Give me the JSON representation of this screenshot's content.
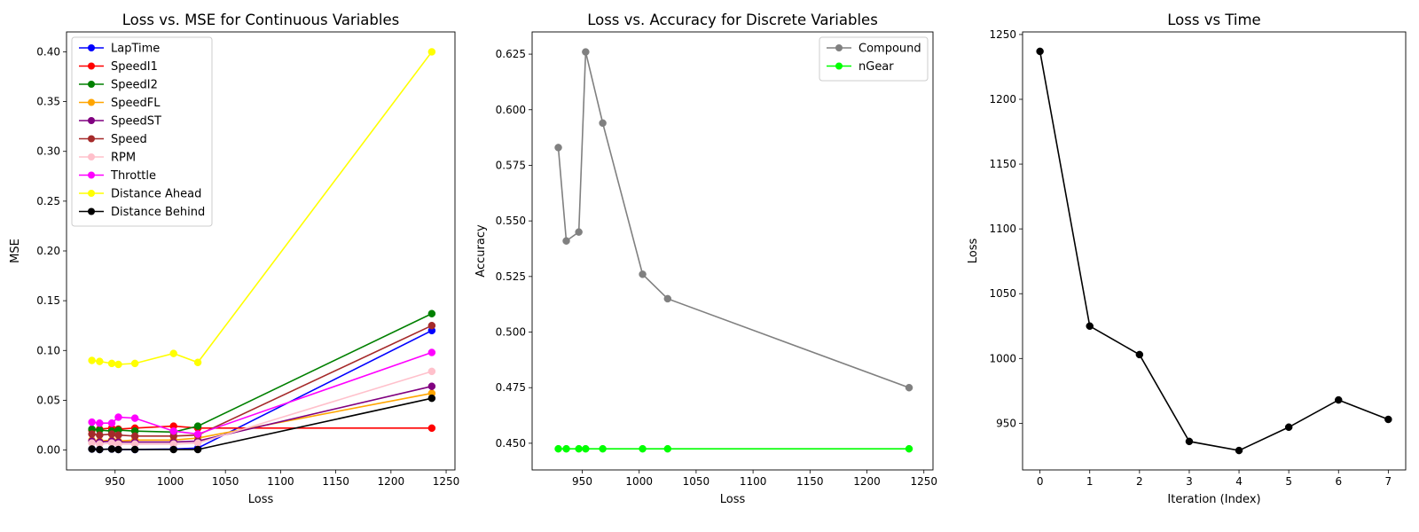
{
  "chart_data": [
    {
      "type": "line",
      "title": "Loss vs. MSE for Continuous Variables",
      "xlabel": "Loss",
      "ylabel": "MSE",
      "xlim": [
        906,
        1258
      ],
      "ylim": [
        -0.02,
        0.42
      ],
      "xticks": [
        "950",
        "1000",
        "1050",
        "1100",
        "1150",
        "1200",
        "1250"
      ],
      "xtick_values": [
        950,
        1000,
        1050,
        1100,
        1150,
        1200,
        1250
      ],
      "yticks": [
        "0.00",
        "0.05",
        "0.10",
        "0.15",
        "0.20",
        "0.25",
        "0.30",
        "0.35",
        "0.40"
      ],
      "ytick_values": [
        0,
        0.05,
        0.1,
        0.15,
        0.2,
        0.25,
        0.3,
        0.35,
        0.4
      ],
      "legend_position": "top-left",
      "grid": false,
      "x": [
        929,
        936,
        947,
        953,
        968,
        1003,
        1025,
        1237
      ],
      "series": [
        {
          "name": "LapTime",
          "color": "#0000ff",
          "values": [
            0.001,
            0.0005,
            0.001,
            0.0005,
            0.0005,
            0.001,
            0.002,
            0.12
          ]
        },
        {
          "name": "SpeedI1",
          "color": "#ff0000",
          "values": [
            0.02,
            0.021,
            0.022,
            0.021,
            0.022,
            0.024,
            0.022,
            0.022
          ]
        },
        {
          "name": "SpeedI2",
          "color": "#008000",
          "values": [
            0.021,
            0.02,
            0.019,
            0.02,
            0.019,
            0.018,
            0.024,
            0.137
          ]
        },
        {
          "name": "SpeedFL",
          "color": "#ffa500",
          "values": [
            0.01,
            0.009,
            0.01,
            0.009,
            0.01,
            0.01,
            0.012,
            0.057
          ]
        },
        {
          "name": "SpeedST",
          "color": "#800080",
          "values": [
            0.009,
            0.008,
            0.009,
            0.008,
            0.008,
            0.008,
            0.009,
            0.064
          ]
        },
        {
          "name": "Speed",
          "color": "#a52a2a",
          "values": [
            0.016,
            0.015,
            0.016,
            0.015,
            0.014,
            0.014,
            0.015,
            0.125
          ]
        },
        {
          "name": "RPM",
          "color": "#ffc0cb",
          "values": [
            0.007,
            0.006,
            0.007,
            0.006,
            0.006,
            0.006,
            0.007,
            0.079
          ]
        },
        {
          "name": "Throttle",
          "color": "#ff00ff",
          "values": [
            0.028,
            0.027,
            0.027,
            0.033,
            0.032,
            0.019,
            0.016,
            0.098
          ]
        },
        {
          "name": "Distance Ahead",
          "color": "#ffff00",
          "values": [
            0.09,
            0.089,
            0.087,
            0.086,
            0.087,
            0.097,
            0.088,
            0.4
          ]
        },
        {
          "name": "Distance Behind",
          "color": "#000000",
          "values": [
            0.001,
            0.0005,
            0.001,
            0.0005,
            0.0005,
            0.0005,
            0.0005,
            0.052
          ]
        }
      ]
    },
    {
      "type": "line",
      "title": "Loss vs. Accuracy for Discrete Variables",
      "xlabel": "Loss",
      "ylabel": "Accuracy",
      "xlim": [
        906,
        1258
      ],
      "ylim": [
        0.438,
        0.635
      ],
      "xticks": [
        "950",
        "1000",
        "1050",
        "1100",
        "1150",
        "1200",
        "1250"
      ],
      "xtick_values": [
        950,
        1000,
        1050,
        1100,
        1150,
        1200,
        1250
      ],
      "yticks": [
        "0.450",
        "0.475",
        "0.500",
        "0.525",
        "0.550",
        "0.575",
        "0.600",
        "0.625"
      ],
      "ytick_values": [
        0.45,
        0.475,
        0.5,
        0.525,
        0.55,
        0.575,
        0.6,
        0.625
      ],
      "legend_position": "top-right",
      "grid": false,
      "series": [
        {
          "name": "Compound",
          "color": "#808080",
          "x": [
            929,
            936,
            947,
            953,
            968,
            1003,
            1025,
            1237
          ],
          "values": [
            0.583,
            0.541,
            0.545,
            0.626,
            0.594,
            0.526,
            0.515,
            0.475
          ]
        },
        {
          "name": "nGear",
          "color": "#00ff00",
          "x": [
            929,
            936,
            947,
            953,
            968,
            1003,
            1025,
            1237
          ],
          "values": [
            0.4475,
            0.4475,
            0.4475,
            0.4475,
            0.4475,
            0.4475,
            0.4475,
            0.4475
          ]
        }
      ]
    },
    {
      "type": "line",
      "title": "Loss vs Time",
      "xlabel": "Iteration (Index)",
      "ylabel": "Loss",
      "xlim": [
        -0.35,
        7.35
      ],
      "ylim": [
        914,
        1252
      ],
      "xticks": [
        "0",
        "1",
        "2",
        "3",
        "4",
        "5",
        "6",
        "7"
      ],
      "xtick_values": [
        0,
        1,
        2,
        3,
        4,
        5,
        6,
        7
      ],
      "yticks": [
        "950",
        "1000",
        "1050",
        "1100",
        "1150",
        "1200",
        "1250"
      ],
      "ytick_values": [
        950,
        1000,
        1050,
        1100,
        1150,
        1200,
        1250
      ],
      "grid": false,
      "series": [
        {
          "color": "#000000",
          "x": [
            0,
            1,
            2,
            3,
            4,
            5,
            6,
            7
          ],
          "values": [
            1237,
            1025,
            1003,
            936,
            929,
            947,
            968,
            953
          ]
        }
      ]
    }
  ]
}
